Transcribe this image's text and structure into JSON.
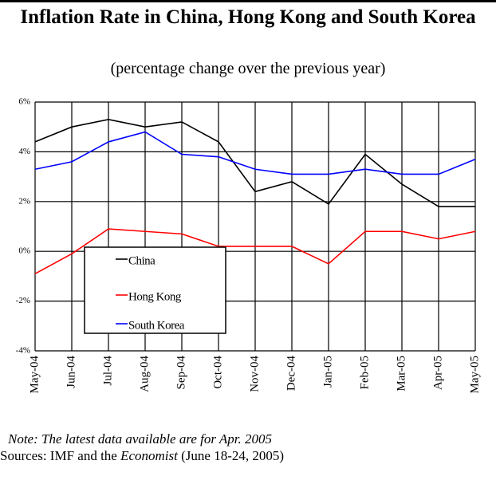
{
  "chart_data": {
    "type": "line",
    "title": "Inflation Rate in China, Hong Kong and South Korea",
    "subtitle": "(percentage change over the previous year)",
    "categories": [
      "May-04",
      "Jun-04",
      "Jul-04",
      "Aug-04",
      "Sep-04",
      "Oct-04",
      "Nov-04",
      "Dec-04",
      "Jan-05",
      "Feb-05",
      "Mar-05",
      "Apr-05",
      "May-05"
    ],
    "series": [
      {
        "name": "China",
        "color": "#000000",
        "values": [
          4.4,
          5.0,
          5.3,
          5.0,
          5.2,
          4.4,
          2.4,
          2.8,
          1.9,
          3.9,
          2.7,
          1.8,
          1.8
        ]
      },
      {
        "name": "Hong Kong",
        "color": "#ff0000",
        "values": [
          -0.9,
          -0.1,
          0.9,
          0.8,
          0.7,
          0.2,
          0.2,
          0.2,
          -0.5,
          0.8,
          0.8,
          0.5,
          0.8
        ]
      },
      {
        "name": "South Korea",
        "color": "#0000ff",
        "values": [
          3.3,
          3.6,
          4.4,
          4.8,
          3.9,
          3.8,
          3.3,
          3.1,
          3.1,
          3.3,
          3.1,
          3.1,
          3.7
        ]
      }
    ],
    "ylim": [
      -4,
      6
    ],
    "yticks": [
      {
        "value": 6,
        "label": "6%"
      },
      {
        "value": 4,
        "label": "4%"
      },
      {
        "value": 2,
        "label": "2%"
      },
      {
        "value": 0,
        "label": "0%"
      },
      {
        "value": -2,
        "label": "-2%"
      },
      {
        "value": -4,
        "label": "-4%"
      }
    ],
    "grid": true,
    "note": "Note: The latest data available are for Apr. 2005",
    "source_prefix": "Sources: IMF and the ",
    "source_italic": "Economist",
    "source_suffix": " (June 18-24, 2005)"
  }
}
